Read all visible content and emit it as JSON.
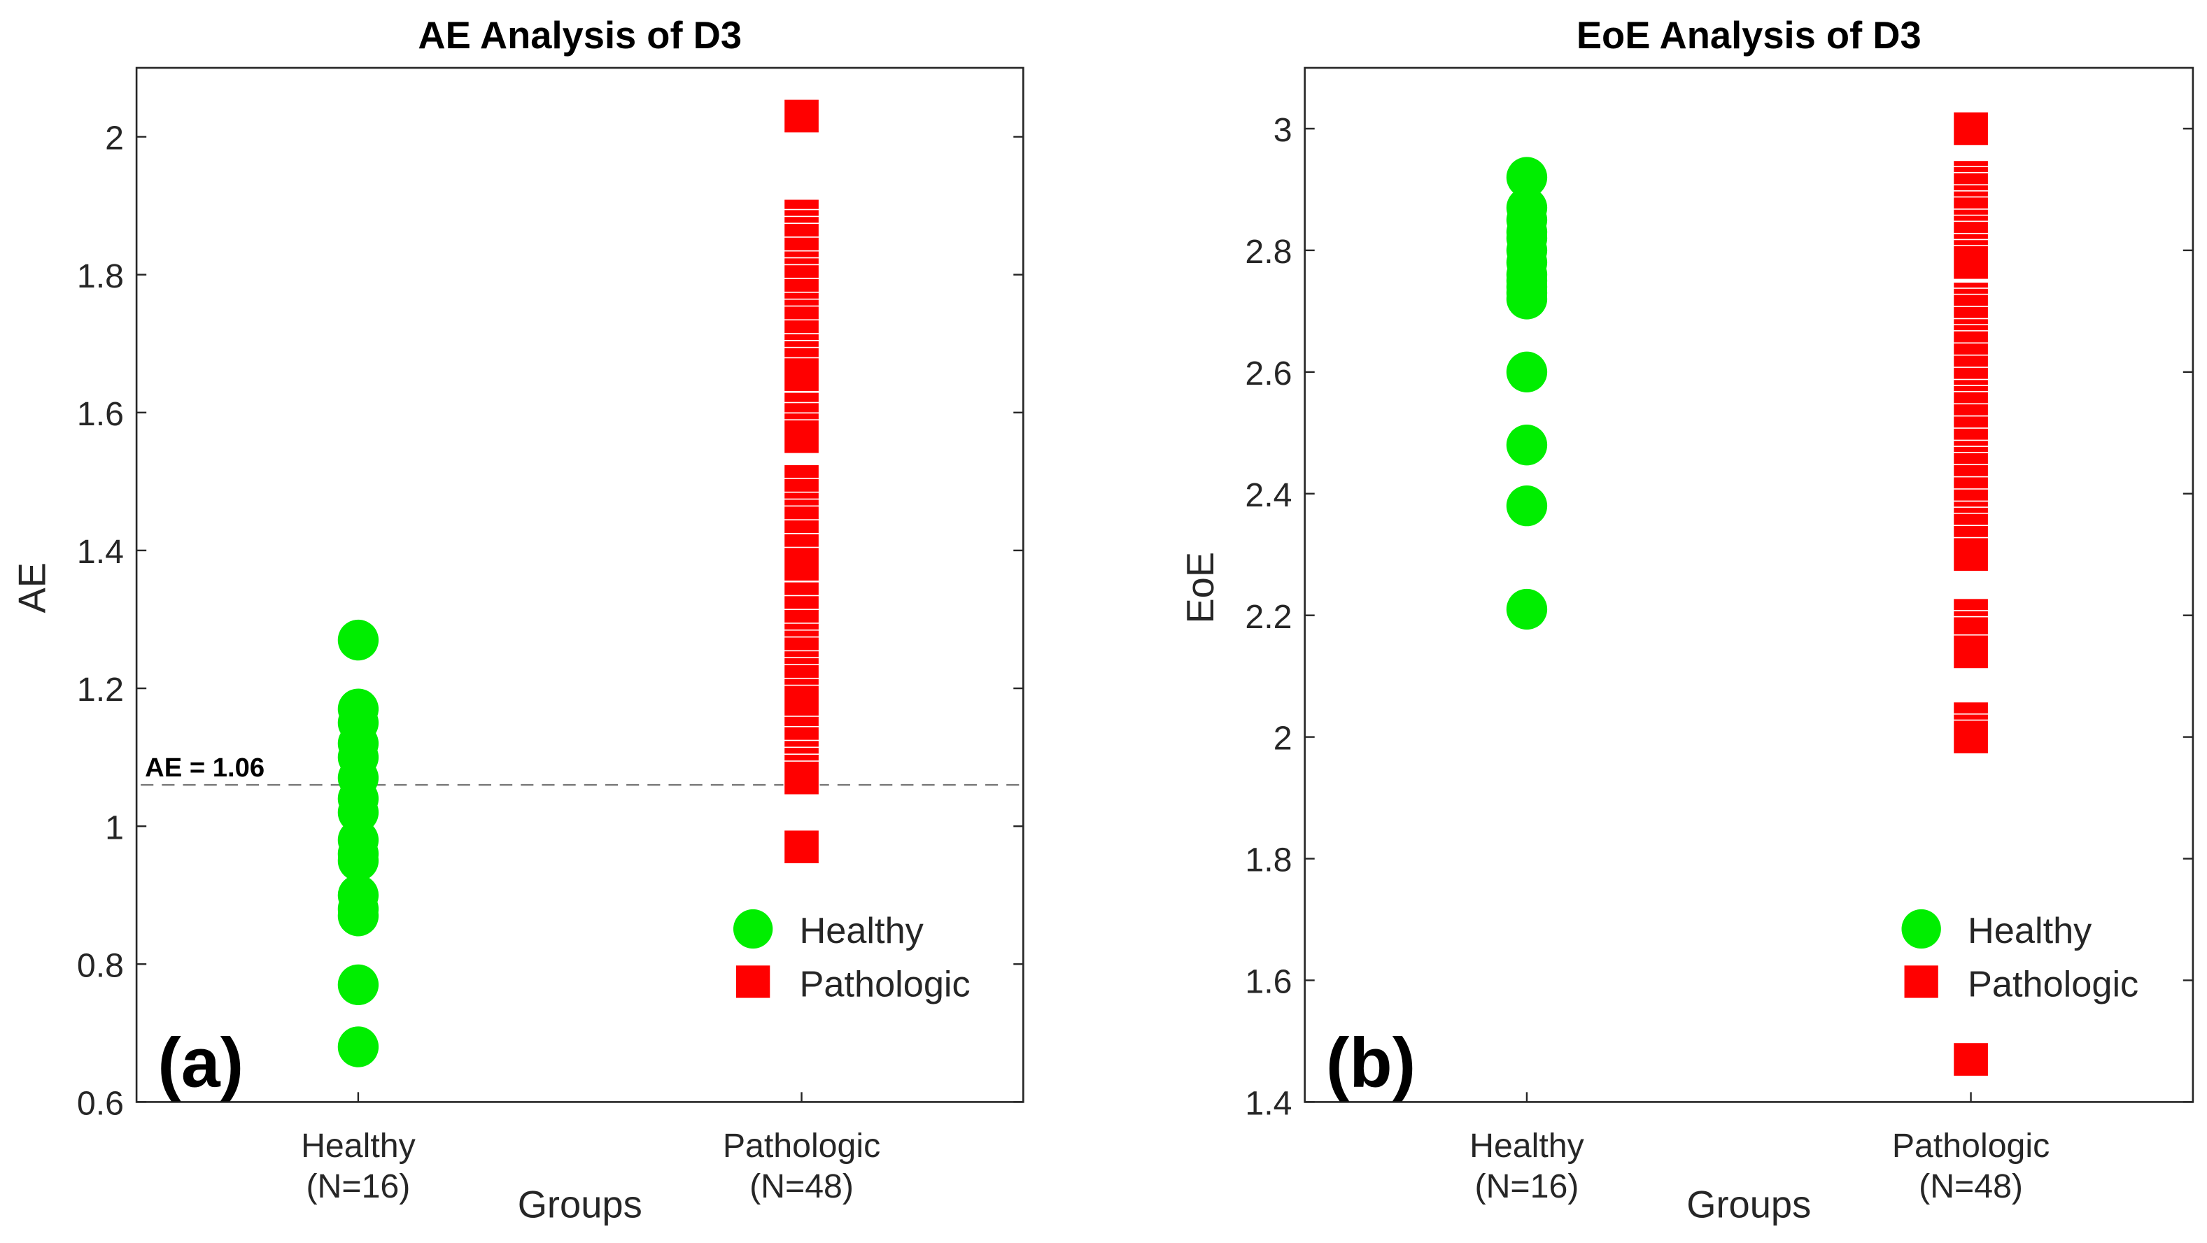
{
  "chart_data": [
    {
      "type": "scatter",
      "title": "AE Analysis of D3",
      "panel_label": "(a)",
      "xlabel": "Groups",
      "ylabel": "AE",
      "categories": [
        [
          "Healthy",
          "(N=16)"
        ],
        [
          "Pathologic",
          "(N=48)"
        ]
      ],
      "xlim": [
        0.5,
        2.5
      ],
      "ylim": [
        0.6,
        2.1
      ],
      "yticks": [
        0.6,
        0.8,
        1,
        1.2,
        1.4,
        1.6,
        1.8,
        2
      ],
      "ytick_labels": [
        "0.6",
        "0.8",
        "1",
        "1.2",
        "1.4",
        "1.6",
        "1.8",
        "2"
      ],
      "threshold": {
        "value": 1.06,
        "label": "AE = 1.06"
      },
      "legend": {
        "position": "bottom-right",
        "entries": [
          "Healthy",
          "Pathologic"
        ]
      },
      "series": [
        {
          "name": "Healthy",
          "marker": "circle",
          "color": "#00ee00",
          "x": 1,
          "values": [
            1.27,
            1.17,
            1.15,
            1.12,
            1.1,
            1.07,
            1.04,
            1.02,
            0.98,
            0.96,
            0.95,
            0.9,
            0.88,
            0.87,
            0.77,
            0.68
          ]
        },
        {
          "name": "Pathologic",
          "marker": "square",
          "color": "#ff0000",
          "x": 2,
          "values": [
            2.03,
            1.885,
            1.87,
            1.86,
            1.85,
            1.83,
            1.81,
            1.8,
            1.79,
            1.77,
            1.75,
            1.74,
            1.73,
            1.71,
            1.69,
            1.68,
            1.67,
            1.655,
            1.605,
            1.59,
            1.575,
            1.565,
            1.5,
            1.48,
            1.46,
            1.45,
            1.44,
            1.42,
            1.4,
            1.38,
            1.33,
            1.31,
            1.29,
            1.27,
            1.26,
            1.25,
            1.23,
            1.22,
            1.21,
            1.19,
            1.18,
            1.135,
            1.12,
            1.1,
            1.09,
            1.08,
            1.07,
            0.97
          ]
        }
      ]
    },
    {
      "type": "scatter",
      "title": "EoE Analysis of D3",
      "panel_label": "(b)",
      "xlabel": "Groups",
      "ylabel": "EoE",
      "categories": [
        [
          "Healthy",
          "(N=16)"
        ],
        [
          "Pathologic",
          "(N=48)"
        ]
      ],
      "xlim": [
        0.5,
        2.5
      ],
      "ylim": [
        1.4,
        3.1
      ],
      "yticks": [
        1.4,
        1.6,
        1.8,
        2,
        2.2,
        2.4,
        2.6,
        2.8,
        3
      ],
      "ytick_labels": [
        "1.4",
        "1.6",
        "1.8",
        "2",
        "2.2",
        "2.4",
        "2.6",
        "2.8",
        "3"
      ],
      "legend": {
        "position": "bottom-right",
        "entries": [
          "Healthy",
          "Pathologic"
        ]
      },
      "series": [
        {
          "name": "Healthy",
          "marker": "circle",
          "color": "#00ee00",
          "x": 1,
          "values": [
            2.92,
            2.87,
            2.85,
            2.83,
            2.82,
            2.8,
            2.78,
            2.76,
            2.75,
            2.74,
            2.73,
            2.72,
            2.6,
            2.48,
            2.38,
            2.21
          ]
        },
        {
          "name": "Pathologic",
          "marker": "square",
          "color": "#ff0000",
          "x": 2,
          "values": [
            3.0,
            2.92,
            2.91,
            2.9,
            2.88,
            2.87,
            2.86,
            2.84,
            2.83,
            2.82,
            2.8,
            2.79,
            2.78,
            2.72,
            2.71,
            2.7,
            2.68,
            2.66,
            2.65,
            2.64,
            2.62,
            2.6,
            2.58,
            2.56,
            2.55,
            2.54,
            2.52,
            2.5,
            2.48,
            2.46,
            2.45,
            2.44,
            2.42,
            2.4,
            2.38,
            2.36,
            2.35,
            2.34,
            2.32,
            2.3,
            2.2,
            2.18,
            2.17,
            2.14,
            2.03,
            2.01,
            2.0,
            1.47
          ]
        }
      ]
    }
  ]
}
